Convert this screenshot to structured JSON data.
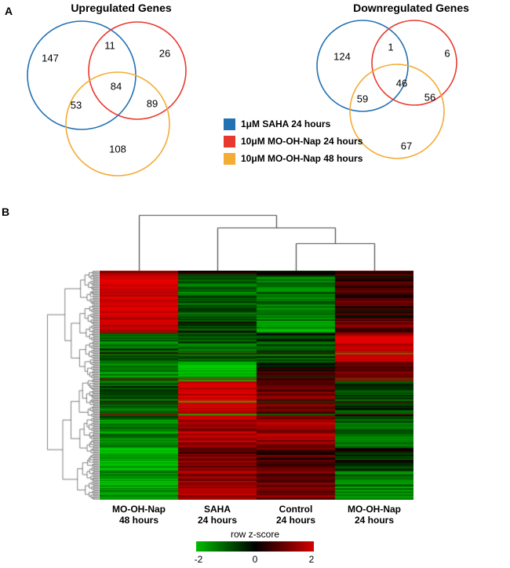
{
  "panels": {
    "a_label": "A",
    "b_label": "B"
  },
  "legend": {
    "items": [
      {
        "label": "1μM SAHA 24 hours",
        "color": "#2271b3"
      },
      {
        "label": "10μM MO-OH-Nap 24 hours",
        "color": "#e8392f"
      },
      {
        "label": "10μM MO-OH-Nap 48 hours",
        "color": "#f3ac34"
      }
    ]
  },
  "chart_data": [
    {
      "type": "venn3",
      "title": "Upregulated Genes",
      "sets": [
        "1μM SAHA 24 hours",
        "10μM MO-OH-Nap 24 hours",
        "10μM MO-OH-Nap 48 hours"
      ],
      "regions": {
        "saha_only": 147,
        "saha_nap24": 11,
        "nap24_only": 26,
        "saha_nap48": 53,
        "all_three": 84,
        "nap24_nap48": 89,
        "nap48_only": 108
      }
    },
    {
      "type": "venn3",
      "title": "Downregulated Genes",
      "sets": [
        "1μM SAHA 24 hours",
        "10μM MO-OH-Nap 24 hours",
        "10μM MO-OH-Nap 48 hours"
      ],
      "regions": {
        "saha_only": 124,
        "saha_nap24": 1,
        "nap24_only": 6,
        "saha_nap48": 59,
        "all_three": 46,
        "nap24_nap48": 56,
        "nap48_only": 67
      }
    },
    {
      "type": "heatmap",
      "columns": [
        {
          "line1": "MO-OH-Nap",
          "line2": "48 hours"
        },
        {
          "line1": "SAHA",
          "line2": "24 hours"
        },
        {
          "line1": "Control",
          "line2": "24 hours"
        },
        {
          "line1": "MO-OH-Nap",
          "line2": "24 hours"
        }
      ],
      "clustering": {
        "top_dendrogram": true,
        "left_dendrogram": true
      },
      "colorbar": {
        "label": "row z-score",
        "ticks": [
          "-2",
          "0",
          "2"
        ],
        "negative_color": "#00bb00",
        "zero_color": "#000000",
        "positive_color": "#d40000"
      },
      "zscore_range": [
        -2,
        2
      ],
      "row_blocks": [
        {
          "rows": 0.02,
          "values": [
            1.0,
            -0.3,
            0.3,
            0.5
          ]
        },
        {
          "rows": 0.2,
          "values": [
            1.9,
            -0.9,
            -1.1,
            0.4
          ]
        },
        {
          "rows": 0.05,
          "values": [
            1.6,
            -0.4,
            -1.6,
            1.0
          ]
        },
        {
          "rows": 0.13,
          "values": [
            -0.9,
            -0.8,
            -0.5,
            1.8
          ]
        },
        {
          "rows": 0.08,
          "values": [
            -1.2,
            -1.9,
            0.1,
            1.1
          ]
        },
        {
          "rows": 0.17,
          "values": [
            -0.8,
            1.9,
            0.9,
            -0.6
          ]
        },
        {
          "rows": 0.12,
          "values": [
            -1.4,
            1.4,
            1.2,
            -1.0
          ]
        },
        {
          "rows": 0.1,
          "values": [
            -1.7,
            1.0,
            0.5,
            -0.4
          ]
        },
        {
          "rows": 0.13,
          "values": [
            -1.6,
            1.3,
            0.8,
            -1.2
          ]
        }
      ]
    }
  ]
}
